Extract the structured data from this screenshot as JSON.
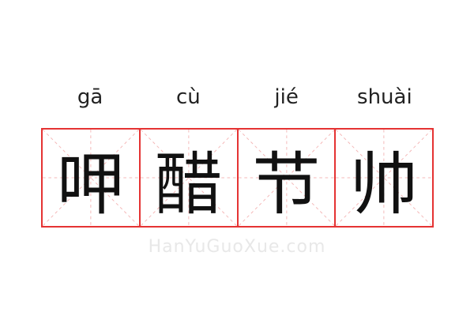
{
  "characters": [
    {
      "pinyin": "gā",
      "hanzi": "呷"
    },
    {
      "pinyin": "cù",
      "hanzi": "醋"
    },
    {
      "pinyin": "jié",
      "hanzi": "节"
    },
    {
      "pinyin": "shuài",
      "hanzi": "帅"
    }
  ],
  "watermark": "HanYuGuoXue.com",
  "colors": {
    "grid": "#e53333",
    "guide": "#f4b8b8"
  }
}
